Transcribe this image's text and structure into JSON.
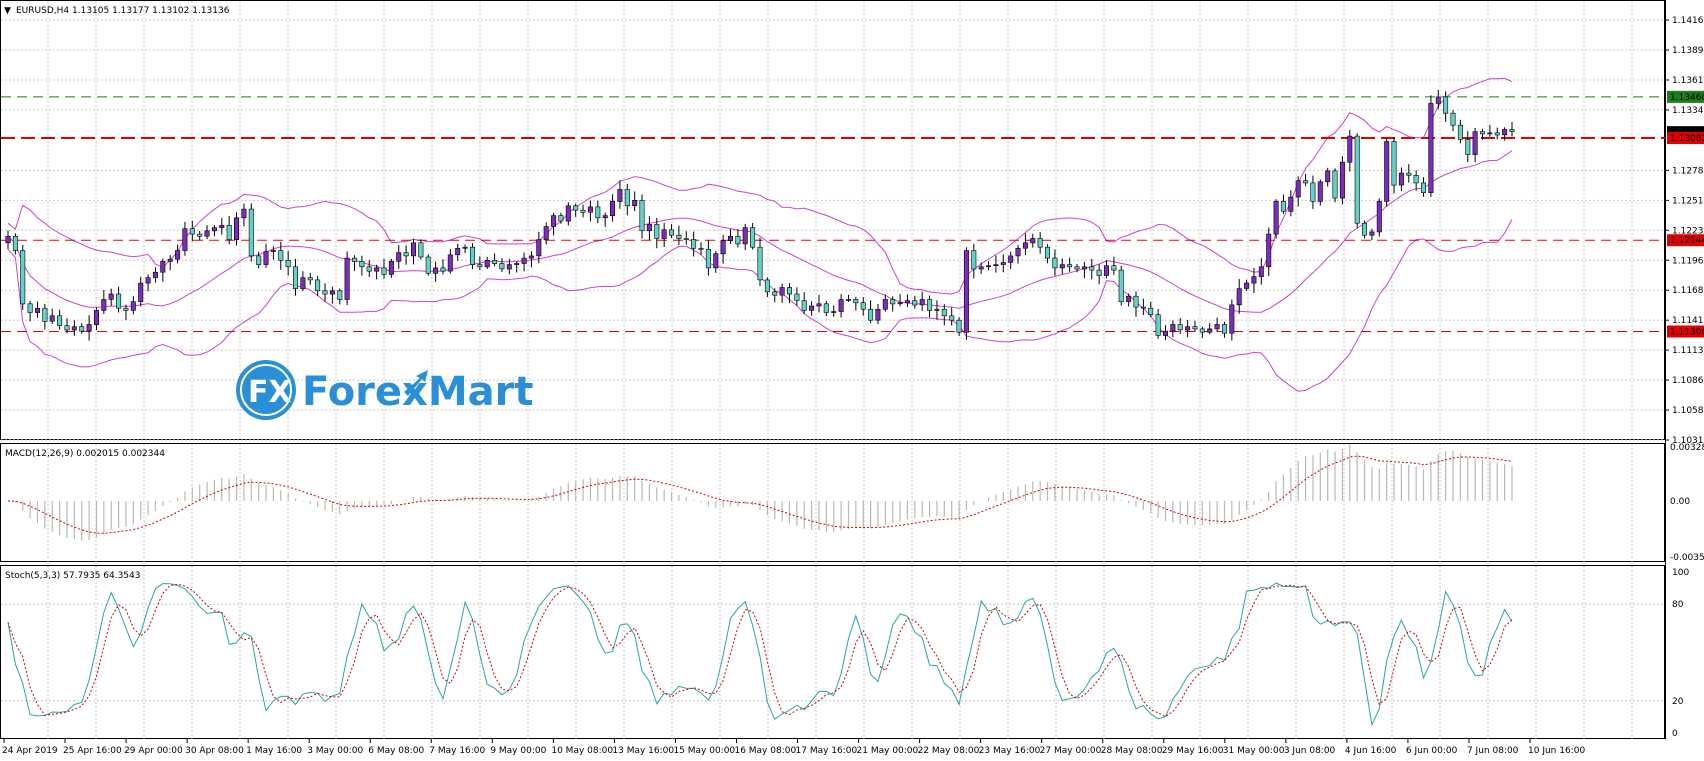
{
  "header": {
    "symbol": "EURUSD,H4",
    "ohlc": "1.13105 1.13177 1.13102 1.13136"
  },
  "logo": {
    "mark": "FX",
    "text": "ForexMart"
  },
  "colors": {
    "bull": "#7b2cbf",
    "bear": "#5fd3c7",
    "wick": "#000000",
    "bands": "#cc44cc",
    "grid": "#c8c8c8",
    "hline_red": "#e00000",
    "hline_green": "#1a7f1a",
    "stoch_main": "#2aa6a0",
    "stoch_signal": "#cc0000",
    "macd_hist": "#b8b8b8",
    "macd_signal": "#cc0000",
    "logo_blue": "#2a8fd6"
  },
  "price_axis": {
    "ticks": [
      "1.14165",
      "1.13890",
      "1.13615",
      "1.13340",
      "1.12785",
      "1.12510",
      "1.12235",
      "1.11960",
      "1.11685",
      "1.11410",
      "1.11135",
      "1.10860",
      "1.10585",
      "1.10310"
    ],
    "badges": [
      {
        "label": "1.13460",
        "kind": "green"
      },
      {
        "label": "1.13136",
        "kind": "current"
      },
      {
        "label": "1.13082",
        "kind": "red"
      },
      {
        "label": "1.12144",
        "kind": "red"
      },
      {
        "label": "1.11306",
        "kind": "red"
      }
    ]
  },
  "chart_data": [
    {
      "type": "candlestick",
      "title": "EURUSD,H4",
      "ylim": [
        1.1031,
        1.1434
      ],
      "horizontal_lines": [
        {
          "value": 1.1346,
          "style": "dashed",
          "color": "green"
        },
        {
          "value": 1.13082,
          "style": "dashed-bold",
          "color": "red"
        },
        {
          "value": 1.12144,
          "style": "dashed",
          "color": "red"
        },
        {
          "value": 1.11306,
          "style": "dashed",
          "color": "red"
        }
      ],
      "indicators": [
        "Bollinger Bands (upper, middle, lower)"
      ],
      "close": [
        1.1218,
        1.1205,
        1.1156,
        1.1148,
        1.1152,
        1.114,
        1.1145,
        1.1136,
        1.1132,
        1.1135,
        1.1131,
        1.1137,
        1.115,
        1.116,
        1.1165,
        1.1152,
        1.115,
        1.1158,
        1.1175,
        1.118,
        1.1185,
        1.1195,
        1.1197,
        1.1205,
        1.1225,
        1.122,
        1.1218,
        1.1223,
        1.1226,
        1.1228,
        1.1215,
        1.1235,
        1.1243,
        1.12,
        1.1192,
        1.1204,
        1.1205,
        1.1196,
        1.119,
        1.117,
        1.118,
        1.1178,
        1.1168,
        1.1165,
        1.1168,
        1.116,
        1.1198,
        1.1195,
        1.119,
        1.1186,
        1.1189,
        1.1183,
        1.1195,
        1.1203,
        1.12,
        1.1212,
        1.1199,
        1.1184,
        1.1189,
        1.1186,
        1.1201,
        1.1207,
        1.1208,
        1.1192,
        1.119,
        1.1196,
        1.1193,
        1.1188,
        1.1192,
        1.1193,
        1.1198,
        1.12,
        1.1215,
        1.1227,
        1.1237,
        1.1232,
        1.1246,
        1.1242,
        1.124,
        1.1245,
        1.1235,
        1.1237,
        1.125,
        1.1261,
        1.1246,
        1.1251,
        1.1223,
        1.1229,
        1.1216,
        1.1224,
        1.1219,
        1.1216,
        1.1215,
        1.1207,
        1.1206,
        1.1189,
        1.1202,
        1.1214,
        1.1218,
        1.1211,
        1.1226,
        1.1208,
        1.1178,
        1.1167,
        1.1164,
        1.1171,
        1.1165,
        1.1159,
        1.115,
        1.1154,
        1.1156,
        1.1148,
        1.1149,
        1.116,
        1.116,
        1.1157,
        1.1151,
        1.1141,
        1.1151,
        1.116,
        1.1156,
        1.1157,
        1.1159,
        1.1155,
        1.116,
        1.115,
        1.1151,
        1.1145,
        1.1141,
        1.113,
        1.1205,
        1.1188,
        1.119,
        1.1191,
        1.1192,
        1.1194,
        1.12,
        1.1207,
        1.1212,
        1.1216,
        1.1208,
        1.1198,
        1.1189,
        1.1192,
        1.119,
        1.1188,
        1.119,
        1.1187,
        1.1182,
        1.1191,
        1.1187,
        1.1158,
        1.1163,
        1.1153,
        1.1152,
        1.1146,
        1.1127,
        1.1131,
        1.1137,
        1.1132,
        1.1135,
        1.1133,
        1.113,
        1.1133,
        1.1137,
        1.1129,
        1.1155,
        1.117,
        1.1175,
        1.1181,
        1.119,
        1.122,
        1.125,
        1.1241,
        1.1254,
        1.1269,
        1.1267,
        1.125,
        1.1268,
        1.1278,
        1.1253,
        1.1286,
        1.131,
        1.123,
        1.1219,
        1.1222,
        1.125,
        1.1305,
        1.1265,
        1.1276,
        1.1274,
        1.1267,
        1.1258,
        1.134,
        1.1346,
        1.1331,
        1.132,
        1.1307,
        1.1293,
        1.1314,
        1.1312,
        1.1313,
        1.1311,
        1.1316,
        1.1314
      ]
    },
    {
      "type": "bar",
      "title": "MACD(12,26,9) 0.002015 0.002344",
      "ylim": [
        -0.003526,
        0.003283
      ],
      "tick_labels": [
        "0.003283",
        "0.00",
        "-0.003526"
      ],
      "series": [
        "MACD histogram",
        "Signal (dotted)"
      ]
    },
    {
      "type": "line",
      "title": "Stoch(5,3,3) 57.7935 64.3543",
      "ylim": [
        0,
        100
      ],
      "tick_labels": [
        "100",
        "80",
        "20",
        "0"
      ],
      "series": [
        "%K",
        "%D (dotted)"
      ]
    }
  ],
  "x_labels": [
    "24 Apr 2019",
    "25 Apr 16:00",
    "29 Apr 00:00",
    "30 Apr 08:00",
    "1 May 16:00",
    "3 May 00:00",
    "6 May 08:00",
    "7 May 16:00",
    "9 May 00:00",
    "10 May 08:00",
    "13 May 16:00",
    "15 May 00:00",
    "16 May 08:00",
    "17 May 16:00",
    "21 May 00:00",
    "22 May 08:00",
    "23 May 16:00",
    "27 May 00:00",
    "28 May 08:00",
    "29 May 16:00",
    "31 May 00:00",
    "3 Jun 08:00",
    "4 Jun 16:00",
    "6 Jun 00:00",
    "7 Jun 08:00",
    "10 Jun 16:00"
  ]
}
